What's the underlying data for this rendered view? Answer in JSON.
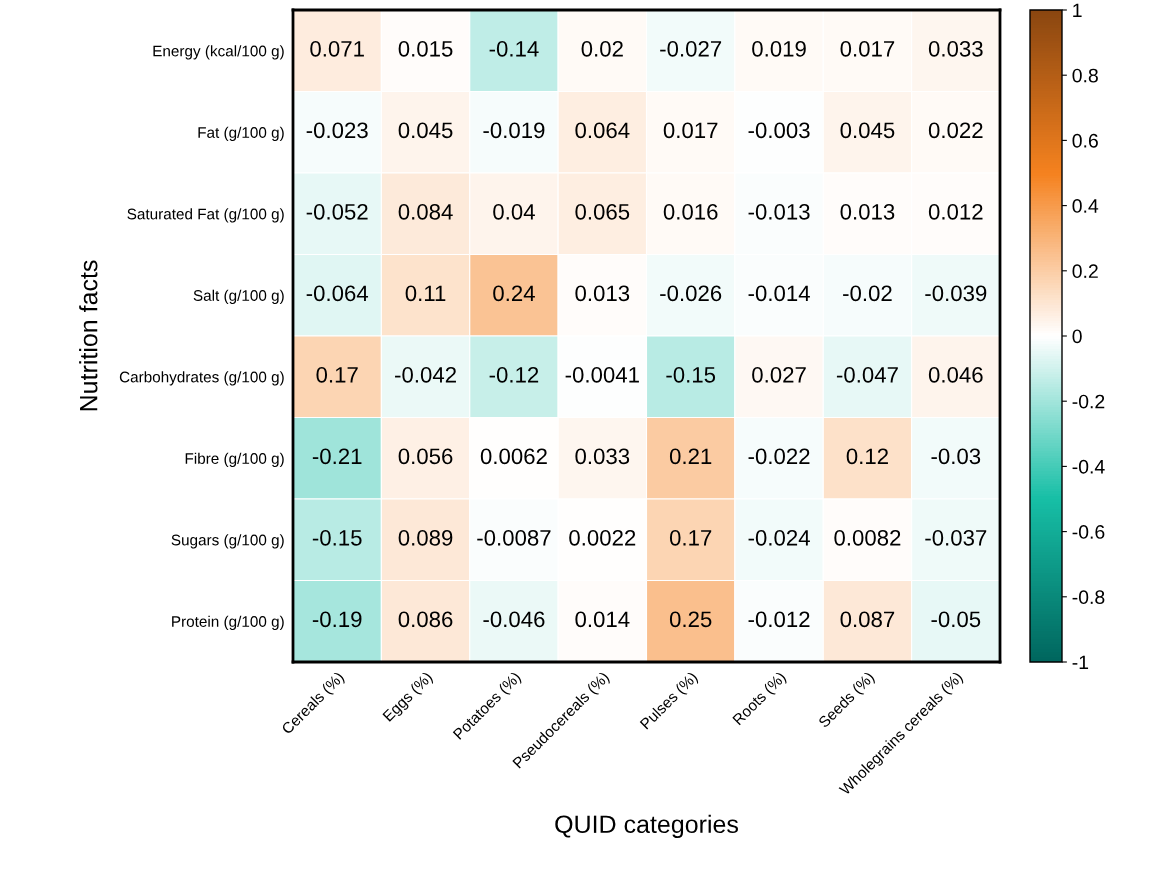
{
  "chart_data": {
    "type": "heatmap",
    "xlabel": "QUID categories",
    "ylabel": "Nutrition facts",
    "categories": [
      "Cereals (%)",
      "Eggs (%)",
      "Potatoes (%)",
      "Pseudocereals (%)",
      "Pulses (%)",
      "Roots (%)",
      "Seeds (%)",
      "Wholegrains cereals (%)"
    ],
    "y_categories": [
      "Energy (kcal/100 g)",
      "Fat (g/100 g)",
      "Saturated Fat (g/100 g)",
      "Salt (g/100 g)",
      "Carbohydrates (g/100 g)",
      "Fibre (g/100 g)",
      "Sugars (g/100 g)",
      "Protein (g/100 g)"
    ],
    "cells": [
      [
        0.071,
        0.015,
        -0.14,
        0.02,
        -0.027,
        0.019,
        0.017,
        0.033
      ],
      [
        -0.023,
        0.045,
        -0.019,
        0.064,
        0.017,
        -0.003,
        0.045,
        0.022
      ],
      [
        -0.052,
        0.084,
        0.04,
        0.065,
        0.016,
        -0.013,
        0.013,
        0.012
      ],
      [
        -0.064,
        0.11,
        0.24,
        0.013,
        -0.026,
        -0.014,
        -0.02,
        -0.039
      ],
      [
        0.17,
        -0.042,
        -0.12,
        -0.0041,
        -0.15,
        0.027,
        -0.047,
        0.046
      ],
      [
        -0.21,
        0.056,
        0.0062,
        0.033,
        0.21,
        -0.022,
        0.12,
        -0.03
      ],
      [
        -0.15,
        0.089,
        -0.0087,
        0.0022,
        0.17,
        -0.024,
        0.0082,
        -0.037
      ],
      [
        -0.19,
        0.086,
        -0.046,
        0.014,
        0.25,
        -0.012,
        0.087,
        -0.05
      ]
    ],
    "data_labels": true,
    "clim": [
      -1,
      1
    ],
    "cticks": [
      -1,
      -0.8,
      -0.6,
      -0.4,
      -0.2,
      0,
      0.2,
      0.4,
      0.6,
      0.8,
      1
    ]
  }
}
